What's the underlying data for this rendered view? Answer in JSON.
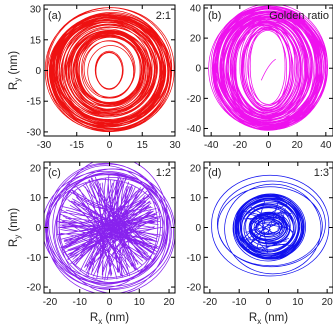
{
  "chart_data": [
    {
      "type": "scatter",
      "panel_label": "(a)",
      "annotation": "2:1",
      "xlabel": "",
      "ylabel": "R_y (nm)",
      "xlim": [
        -30,
        30
      ],
      "ylim": [
        -32,
        32
      ],
      "xticks": [
        -30,
        -15,
        0,
        15,
        30
      ],
      "yticks": [
        -30,
        -15,
        0,
        15,
        30
      ],
      "color": "#ee1111",
      "trajectory": {
        "shape": "ring",
        "inner_radius": [
          5,
          8
        ],
        "outer_radius": [
          29,
          29
        ],
        "center": [
          0,
          0
        ]
      }
    },
    {
      "type": "scatter",
      "panel_label": "(b)",
      "annotation": "Golden ratio",
      "xlabel": "",
      "ylabel": "",
      "xlim": [
        -45,
        45
      ],
      "ylim": [
        -45,
        42
      ],
      "xticks": [
        -40,
        -20,
        0,
        20,
        40
      ],
      "yticks": [
        -40,
        -20,
        0,
        20,
        40
      ],
      "color": "#ee11ee",
      "trajectory": {
        "shape": "ring",
        "inner_radius": [
          11,
          23
        ],
        "outer_radius": [
          40,
          40
        ],
        "center": [
          0,
          0
        ]
      }
    },
    {
      "type": "scatter",
      "panel_label": "(c)",
      "annotation": "1:2",
      "xlabel": "R_x (nm)",
      "ylabel": "R_y (nm)",
      "xlim": [
        -22,
        22
      ],
      "ylim": [
        -22,
        22
      ],
      "xticks": [
        -20,
        -10,
        0,
        10,
        20
      ],
      "yticks": [
        -20,
        -10,
        0,
        10,
        20
      ],
      "color": "#8822ee",
      "trajectory": {
        "shape": "filled",
        "inner_radius": [
          0,
          0
        ],
        "outer_radius": [
          17,
          17
        ],
        "center": [
          0,
          0
        ]
      }
    },
    {
      "type": "scatter",
      "panel_label": "(d)",
      "annotation": "1:3",
      "xlabel": "R_x (nm)",
      "ylabel": "",
      "xlim": [
        -22,
        22
      ],
      "ylim": [
        -22,
        22
      ],
      "xticks": [
        -20,
        -10,
        0,
        10,
        20
      ],
      "yticks": [
        -20,
        -10,
        0,
        10,
        20
      ],
      "color": "#1111ee",
      "trajectory": {
        "shape": "ring",
        "inner_radius": [
          3,
          1
        ],
        "outer_radius": [
          12,
          11
        ],
        "center": [
          0,
          0
        ]
      }
    }
  ]
}
